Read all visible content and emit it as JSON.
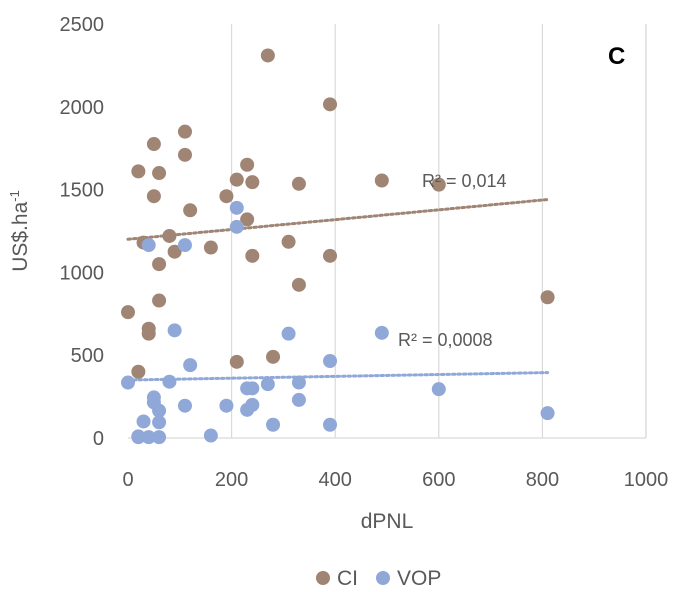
{
  "chart_data": {
    "type": "scatter",
    "panel_label": "C",
    "xlabel": "dPNL",
    "ylabel_main": "US$.ha",
    "ylabel_sup": "-1",
    "xlim": [
      0,
      1000
    ],
    "ylim": [
      0,
      2500
    ],
    "xticks": [
      0,
      200,
      400,
      600,
      800,
      1000
    ],
    "yticks": [
      0,
      500,
      1000,
      1500,
      2000,
      2500
    ],
    "grid": "vertical",
    "legend_position": "bottom",
    "series": [
      {
        "name": "CI",
        "color": "#a08474",
        "points": [
          [
            0,
            760
          ],
          [
            20,
            400
          ],
          [
            20,
            1610
          ],
          [
            30,
            1180
          ],
          [
            40,
            660
          ],
          [
            40,
            630
          ],
          [
            50,
            1775
          ],
          [
            50,
            1460
          ],
          [
            60,
            1600
          ],
          [
            60,
            1050
          ],
          [
            60,
            830
          ],
          [
            80,
            1220
          ],
          [
            90,
            1125
          ],
          [
            110,
            1850
          ],
          [
            110,
            1710
          ],
          [
            120,
            1375
          ],
          [
            160,
            1150
          ],
          [
            190,
            1460
          ],
          [
            210,
            1560
          ],
          [
            210,
            460
          ],
          [
            230,
            1650
          ],
          [
            230,
            1320
          ],
          [
            240,
            1545
          ],
          [
            240,
            1100
          ],
          [
            270,
            2310
          ],
          [
            280,
            490
          ],
          [
            310,
            1185
          ],
          [
            330,
            1535
          ],
          [
            330,
            925
          ],
          [
            390,
            2015
          ],
          [
            390,
            1100
          ],
          [
            490,
            1555
          ],
          [
            600,
            1530
          ],
          [
            810,
            850
          ]
        ],
        "trendline": {
          "x": [
            0,
            810
          ],
          "y": [
            1200,
            1440
          ],
          "r2_label": "R² = 0,014"
        }
      },
      {
        "name": "VOP",
        "color": "#8fa8d8",
        "points": [
          [
            0,
            335
          ],
          [
            20,
            10
          ],
          [
            20,
            5
          ],
          [
            30,
            100
          ],
          [
            40,
            1165
          ],
          [
            40,
            5
          ],
          [
            50,
            245
          ],
          [
            50,
            215
          ],
          [
            60,
            165
          ],
          [
            60,
            95
          ],
          [
            60,
            5
          ],
          [
            80,
            340
          ],
          [
            90,
            650
          ],
          [
            110,
            1165
          ],
          [
            110,
            195
          ],
          [
            120,
            440
          ],
          [
            160,
            15
          ],
          [
            190,
            195
          ],
          [
            210,
            1390
          ],
          [
            210,
            1275
          ],
          [
            230,
            300
          ],
          [
            230,
            170
          ],
          [
            240,
            300
          ],
          [
            240,
            200
          ],
          [
            270,
            325
          ],
          [
            280,
            80
          ],
          [
            310,
            630
          ],
          [
            330,
            335
          ],
          [
            330,
            230
          ],
          [
            390,
            465
          ],
          [
            390,
            80
          ],
          [
            490,
            635
          ],
          [
            600,
            295
          ],
          [
            810,
            150
          ]
        ],
        "trendline": {
          "x": [
            0,
            810
          ],
          "y": [
            350,
            395
          ],
          "r2_label": "R² = 0,0008"
        }
      }
    ]
  }
}
